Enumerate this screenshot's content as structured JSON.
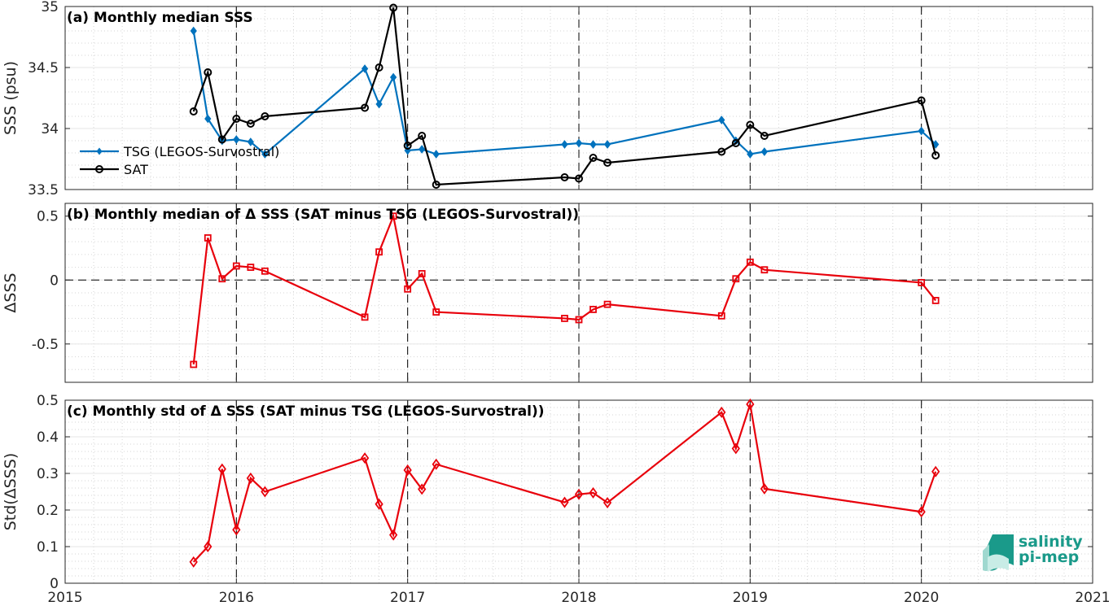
{
  "x_axis": {
    "ticks": [
      "2015",
      "2016",
      "2017",
      "2018",
      "2019",
      "2020",
      "2021"
    ]
  },
  "logo": {
    "line1": "salinity",
    "line2": "pi-mep"
  },
  "colors": {
    "tsg": "#0072bd",
    "sat": "#000000",
    "delta": "#e8000b"
  },
  "chart_data": [
    {
      "type": "line",
      "title": "(a) Monthly median SSS",
      "ylabel": "SSS (psu)",
      "xlim": [
        "2015-01",
        "2021-01"
      ],
      "ylim": [
        33.5,
        35
      ],
      "yticks": [
        "33.5",
        "34",
        "34.5",
        "35"
      ],
      "x_vertical_dashed": [
        "2016-01",
        "2017-01",
        "2018-01",
        "2019-01",
        "2020-01"
      ],
      "legend": {
        "position": "lower-left"
      },
      "grid": true,
      "series": [
        {
          "name": "TSG (LEGOS-Survostral)",
          "marker": "diamond-filled",
          "x": [
            "2015-10",
            "2015-11",
            "2015-12",
            "2016-01",
            "2016-02",
            "2016-03",
            "2016-10",
            "2016-11",
            "2016-12",
            "2017-01",
            "2017-02",
            "2017-03",
            "2017-12",
            "2018-01",
            "2018-02",
            "2018-03",
            "2018-11",
            "2018-12",
            "2019-01",
            "2019-02",
            "2020-01",
            "2020-02"
          ],
          "values": [
            34.8,
            34.08,
            33.9,
            33.91,
            33.89,
            33.79,
            34.49,
            34.2,
            34.42,
            33.82,
            33.83,
            33.79,
            33.87,
            33.88,
            33.87,
            33.87,
            34.07,
            33.9,
            33.79,
            33.81,
            33.98,
            33.87
          ]
        },
        {
          "name": "SAT",
          "marker": "circle-open",
          "x": [
            "2015-10",
            "2015-11",
            "2015-12",
            "2016-01",
            "2016-02",
            "2016-03",
            "2016-10",
            "2016-11",
            "2016-12",
            "2017-01",
            "2017-02",
            "2017-03",
            "2017-12",
            "2018-01",
            "2018-02",
            "2018-03",
            "2018-11",
            "2018-12",
            "2019-01",
            "2019-02",
            "2020-01",
            "2020-02"
          ],
          "values": [
            34.14,
            34.46,
            33.91,
            34.08,
            34.04,
            34.1,
            34.17,
            34.5,
            34.99,
            33.86,
            33.94,
            33.54,
            33.6,
            33.59,
            33.76,
            33.72,
            33.81,
            33.88,
            34.03,
            33.94,
            34.23,
            33.78
          ]
        }
      ]
    },
    {
      "type": "line",
      "title": "(b) Monthly median of Δ SSS (SAT minus TSG (LEGOS-Survostral))",
      "ylabel": "ΔSSS",
      "xlim": [
        "2015-01",
        "2021-01"
      ],
      "ylim": [
        -0.8,
        0.6
      ],
      "yticks": [
        "-0.5",
        "0",
        "0.5"
      ],
      "x_vertical_dashed": [
        "2016-01",
        "2017-01",
        "2018-01",
        "2019-01",
        "2020-01"
      ],
      "y_horizontal_dashed": [
        0
      ],
      "grid": true,
      "series": [
        {
          "marker": "square-open",
          "x": [
            "2015-10",
            "2015-11",
            "2015-12",
            "2016-01",
            "2016-02",
            "2016-03",
            "2016-10",
            "2016-11",
            "2016-12",
            "2017-01",
            "2017-02",
            "2017-03",
            "2017-12",
            "2018-01",
            "2018-02",
            "2018-03",
            "2018-11",
            "2018-12",
            "2019-01",
            "2019-02",
            "2020-01",
            "2020-02"
          ],
          "values": [
            -0.66,
            0.33,
            0.01,
            0.11,
            0.1,
            0.07,
            -0.29,
            0.22,
            0.5,
            -0.07,
            0.05,
            -0.25,
            -0.3,
            -0.31,
            -0.23,
            -0.19,
            -0.28,
            0.01,
            0.14,
            0.08,
            -0.02,
            -0.16
          ]
        }
      ]
    },
    {
      "type": "line",
      "title": "(c) Monthly std of Δ SSS (SAT minus TSG (LEGOS-Survostral))",
      "ylabel": "Std(ΔSSS)",
      "xlim": [
        "2015-01",
        "2021-01"
      ],
      "ylim": [
        0,
        0.5
      ],
      "yticks": [
        "0",
        "0.1",
        "0.2",
        "0.3",
        "0.4",
        "0.5"
      ],
      "x_vertical_dashed": [
        "2016-01",
        "2017-01",
        "2018-01",
        "2019-01",
        "2020-01"
      ],
      "grid": true,
      "series": [
        {
          "marker": "diamond-open",
          "x": [
            "2015-10",
            "2015-11",
            "2015-12",
            "2016-01",
            "2016-02",
            "2016-03",
            "2016-10",
            "2016-11",
            "2016-12",
            "2017-01",
            "2017-02",
            "2017-03",
            "2017-12",
            "2018-01",
            "2018-02",
            "2018-03",
            "2018-11",
            "2018-12",
            "2019-01",
            "2019-02",
            "2020-01",
            "2020-02"
          ],
          "values": [
            0.058,
            0.1,
            0.312,
            0.146,
            0.287,
            0.25,
            0.342,
            0.216,
            0.132,
            0.309,
            0.257,
            0.325,
            0.221,
            0.243,
            0.247,
            0.22,
            0.467,
            0.368,
            0.489,
            0.258,
            0.195,
            0.305
          ]
        }
      ]
    }
  ]
}
